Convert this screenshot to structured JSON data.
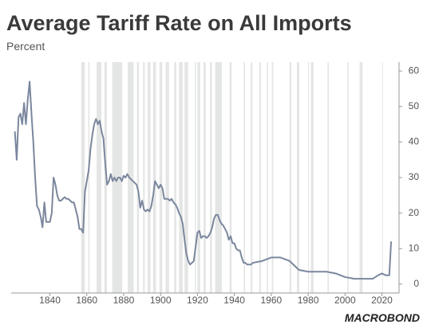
{
  "chart_data": {
    "type": "line",
    "title": "Average Tariff Rate on All Imports",
    "subtitle": "Percent",
    "logo": "MACROBOND",
    "x": [
      1821,
      1822,
      1823,
      1824,
      1825,
      1826,
      1827,
      1828,
      1829,
      1830,
      1831,
      1832,
      1833,
      1834,
      1835,
      1836,
      1837,
      1838,
      1839,
      1840,
      1841,
      1842,
      1843,
      1844,
      1845,
      1846,
      1847,
      1848,
      1849,
      1850,
      1851,
      1852,
      1853,
      1854,
      1855,
      1856,
      1857,
      1858,
      1859,
      1860,
      1861,
      1862,
      1863,
      1864,
      1865,
      1866,
      1867,
      1868,
      1869,
      1870,
      1871,
      1872,
      1873,
      1874,
      1875,
      1876,
      1877,
      1878,
      1879,
      1880,
      1881,
      1882,
      1883,
      1884,
      1885,
      1886,
      1887,
      1888,
      1889,
      1890,
      1891,
      1892,
      1893,
      1894,
      1895,
      1896,
      1897,
      1898,
      1899,
      1900,
      1901,
      1902,
      1903,
      1904,
      1905,
      1906,
      1907,
      1908,
      1909,
      1910,
      1911,
      1912,
      1913,
      1914,
      1915,
      1916,
      1917,
      1918,
      1919,
      1920,
      1921,
      1922,
      1923,
      1924,
      1925,
      1926,
      1927,
      1928,
      1929,
      1930,
      1931,
      1932,
      1933,
      1934,
      1935,
      1936,
      1937,
      1938,
      1939,
      1940,
      1941,
      1942,
      1943,
      1944,
      1945,
      1946,
      1947,
      1948,
      1949,
      1950,
      1955,
      1960,
      1965,
      1970,
      1975,
      1980,
      1985,
      1990,
      1995,
      2000,
      2005,
      2010,
      2015,
      2018,
      2020,
      2022,
      2024,
      2025
    ],
    "series": [
      {
        "name": "Average tariff rate",
        "color": "#7b879d",
        "values": [
          43,
          35,
          47,
          48,
          45,
          51,
          45,
          52,
          57,
          48,
          40,
          30,
          22,
          21,
          19,
          16,
          23,
          17.5,
          17.5,
          17.5,
          20,
          30,
          28,
          25,
          23.5,
          23.5,
          24,
          24.5,
          24,
          24,
          23.5,
          23,
          23,
          21,
          19,
          15.5,
          15.5,
          14.5,
          26,
          29,
          32,
          38,
          42,
          45,
          46.5,
          45,
          46,
          43,
          41,
          34,
          28,
          29,
          31,
          29,
          30,
          29,
          30,
          30,
          29,
          30.5,
          30,
          31,
          30,
          29.5,
          29,
          28.5,
          28,
          26,
          21.5,
          23.5,
          21,
          20.5,
          21,
          20.5,
          22,
          25,
          29,
          28,
          27,
          28,
          27,
          24,
          24,
          24,
          23.5,
          24,
          23,
          22.5,
          21.5,
          20,
          19,
          17,
          12.5,
          8.5,
          6.5,
          5.5,
          6,
          6.5,
          10.5,
          14.5,
          15,
          13,
          13.5,
          13.5,
          13,
          13.5,
          14.5,
          16,
          18.5,
          19.5,
          19.5,
          18,
          17,
          16.5,
          15.5,
          14.5,
          12.5,
          13.5,
          11.5,
          11.5,
          10,
          9.5,
          9.5,
          7.5,
          6,
          6,
          5.5,
          5.5,
          5.5,
          6,
          6.5,
          7.5,
          7.5,
          6.5,
          4,
          3.5,
          3.5,
          3.5,
          3,
          2,
          1.5,
          1.5,
          1.5,
          2.5,
          3,
          2.5,
          2.5,
          12
        ]
      }
    ],
    "shaded_periods": [
      [
        1857,
        1858.9
      ],
      [
        1860.8,
        1861.5
      ],
      [
        1865.3,
        1867.9
      ],
      [
        1869.5,
        1870.9
      ],
      [
        1873.8,
        1879.2
      ],
      [
        1882.2,
        1885.4
      ],
      [
        1887.2,
        1888.3
      ],
      [
        1890.5,
        1891.4
      ],
      [
        1893,
        1894.5
      ],
      [
        1895.9,
        1897.5
      ],
      [
        1899.4,
        1900.9
      ],
      [
        1902.7,
        1904.6
      ],
      [
        1907.4,
        1908.5
      ],
      [
        1910,
        1912
      ],
      [
        1913,
        1914.9
      ],
      [
        1918.6,
        1919.2
      ],
      [
        1920,
        1921.5
      ],
      [
        1923.3,
        1924.5
      ],
      [
        1926.8,
        1927.9
      ],
      [
        1929.6,
        1933.2
      ],
      [
        1937.4,
        1938.5
      ],
      [
        1945.1,
        1945.8
      ],
      [
        1948.9,
        1949.8
      ],
      [
        1953.5,
        1954.4
      ],
      [
        1957.6,
        1958.3
      ],
      [
        1960.3,
        1961.1
      ],
      [
        1969.9,
        1970.9
      ],
      [
        1973.9,
        1975.2
      ],
      [
        1980,
        1980.5
      ],
      [
        1981.5,
        1982.9
      ],
      [
        1990.5,
        1991.2
      ],
      [
        2001.2,
        2001.9
      ],
      [
        2007.9,
        2009.5
      ],
      [
        2020.1,
        2020.3
      ]
    ],
    "shade_color": "#e4e5e5",
    "xlim": [
      1819,
      2028
    ],
    "xticks": [
      1840,
      1860,
      1880,
      1900,
      1920,
      1940,
      1960,
      1980,
      2000,
      2020
    ],
    "ylim": [
      -2.5,
      62.5
    ],
    "yticks": [
      0,
      10,
      20,
      30,
      40,
      50,
      60
    ],
    "grid": false
  }
}
